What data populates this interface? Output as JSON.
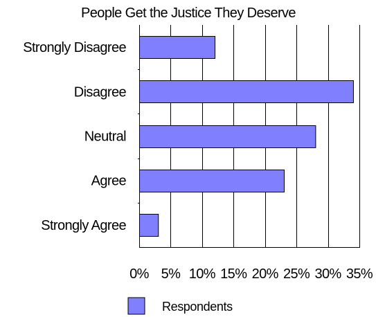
{
  "chart_data": {
    "type": "bar",
    "orientation": "horizontal",
    "title": "People Get the Justice They Deserve",
    "xlabel": "",
    "ylabel": "",
    "categories": [
      "Strongly Disagree",
      "Disagree",
      "Neutral",
      "Agree",
      "Strongly Agree"
    ],
    "series": [
      {
        "name": "Respondents",
        "values": [
          12,
          34,
          28,
          23,
          3
        ],
        "color": "#8080ff"
      }
    ],
    "xlim": [
      0,
      35
    ],
    "ticks": [
      0,
      5,
      10,
      15,
      20,
      25,
      30,
      35
    ],
    "tick_labels": [
      "0%",
      "5%",
      "10%",
      "15%",
      "20%",
      "25%",
      "30%",
      "35%"
    ],
    "grid": true,
    "legend_position": "bottom"
  }
}
